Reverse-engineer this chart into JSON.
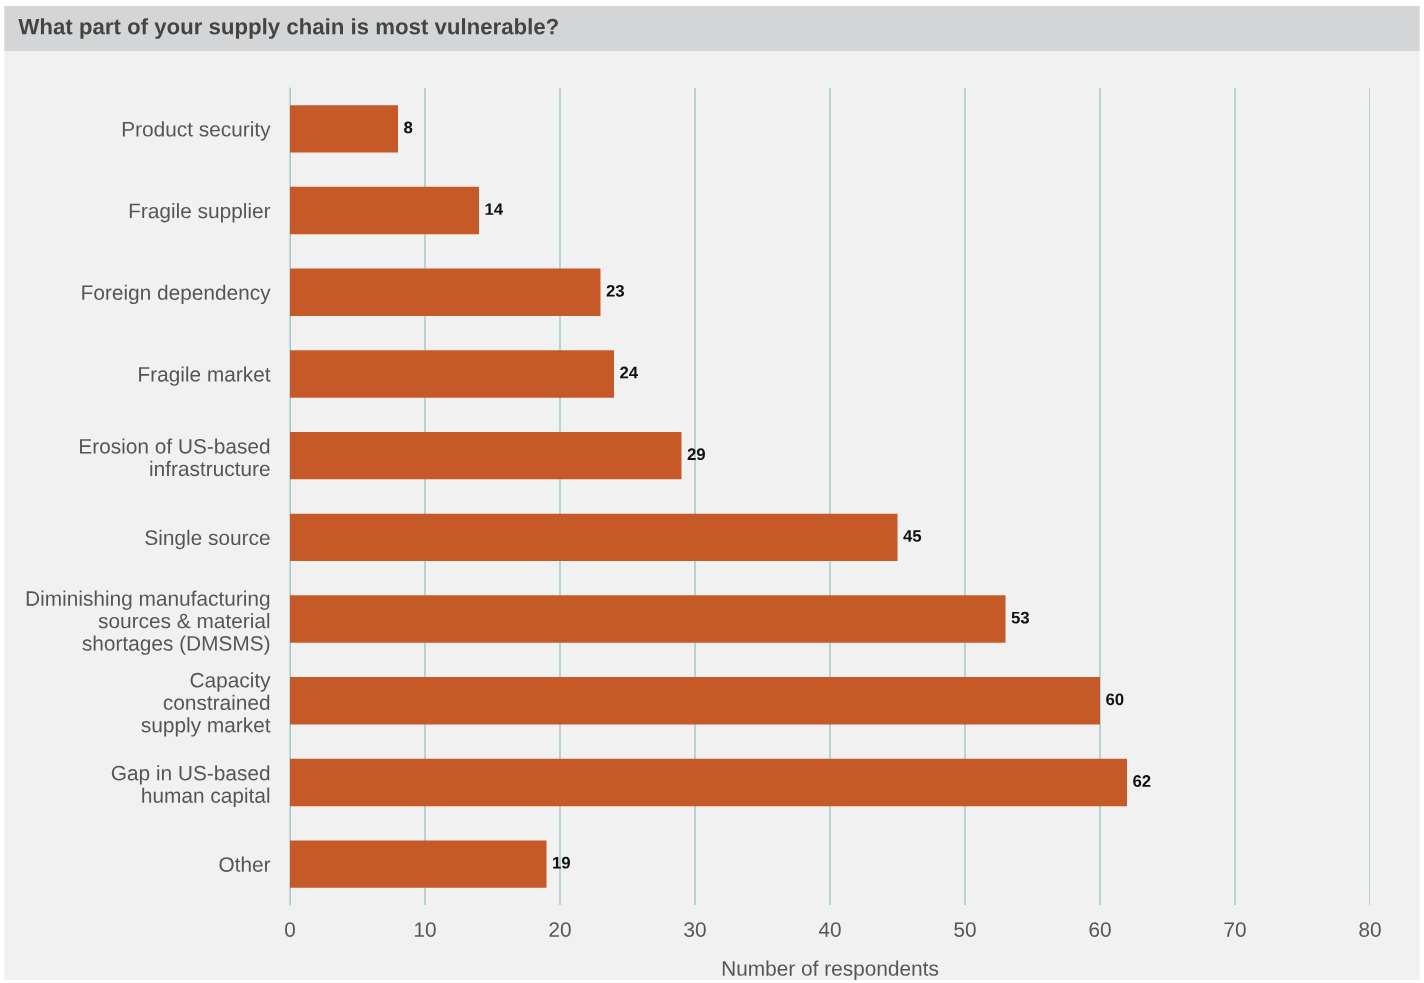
{
  "chart_data": {
    "type": "bar",
    "orientation": "horizontal",
    "title": "What part of your supply chain is most vulnerable?",
    "xlabel": "Number of respondents",
    "categories": [
      "Product security",
      "Fragile supplier",
      "Foreign dependency",
      "Fragile market",
      "Erosion of US-based\ninfrastructure",
      "Single source",
      "Diminishing manufacturing\nsources & material\nshortages (DMSMS)",
      "Capacity\nconstrained\nsupply market",
      "Gap in US-based\nhuman capital",
      "Other"
    ],
    "values": [
      8,
      14,
      23,
      24,
      29,
      45,
      53,
      60,
      62,
      19
    ],
    "color": "#c55a28",
    "data_labels": true,
    "xlim": [
      0,
      80
    ],
    "xticks": [
      0,
      10,
      20,
      30,
      40,
      50,
      60,
      70,
      80
    ],
    "grid": "x"
  }
}
